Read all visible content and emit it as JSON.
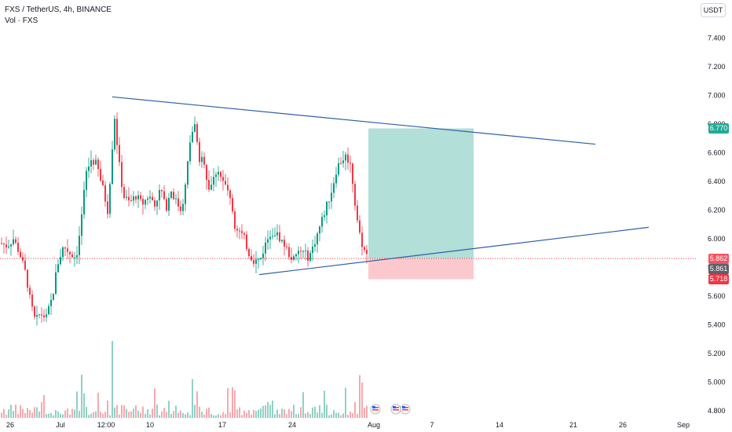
{
  "header": {
    "symbol_line": "FXS / TetherUS, 4h, BINANCE",
    "volume_line": "Vol · FXS",
    "currency_button": "USDT"
  },
  "price_axis": {
    "ticks": [
      "7.400",
      "7.200",
      "7.000",
      "6.800",
      "6.600",
      "6.400",
      "6.200",
      "6.000",
      "5.800",
      "5.600",
      "5.400",
      "5.200",
      "5.000",
      "4.800"
    ]
  },
  "badges": {
    "target": {
      "label": "6.770",
      "color": "#22ab94"
    },
    "last": {
      "label": "5.862",
      "color": "#f7525f"
    },
    "current": {
      "label": "5.861",
      "color": "#5d606b"
    },
    "stop": {
      "label": "5.718",
      "color": "#f23645"
    }
  },
  "time_axis": {
    "ticks": [
      "26",
      "Jul",
      "12:00",
      "10",
      "17",
      "24",
      "Aug",
      "7",
      "14",
      "21",
      "26",
      "Sep"
    ]
  },
  "colors": {
    "up": "#089981",
    "down": "#f23645",
    "trendline": "#2e5ea8",
    "profit_zone": "#b2dfd7",
    "loss_zone": "#fbc9cd"
  },
  "chart_data": {
    "type": "candlestick",
    "pair": "FXS / TetherUS",
    "interval": "4h",
    "exchange": "BINANCE",
    "ylim": [
      4.8,
      7.5
    ],
    "last_price": 5.862,
    "position": {
      "entry": 5.862,
      "target": 6.77,
      "stop": 5.718
    },
    "trendlines": [
      {
        "name": "upper",
        "from": 6.99,
        "to": 6.66
      },
      {
        "name": "lower",
        "from": 5.75,
        "to": 6.08
      }
    ]
  },
  "events": {
    "icon": "flag-us-icon",
    "count": 3
  }
}
